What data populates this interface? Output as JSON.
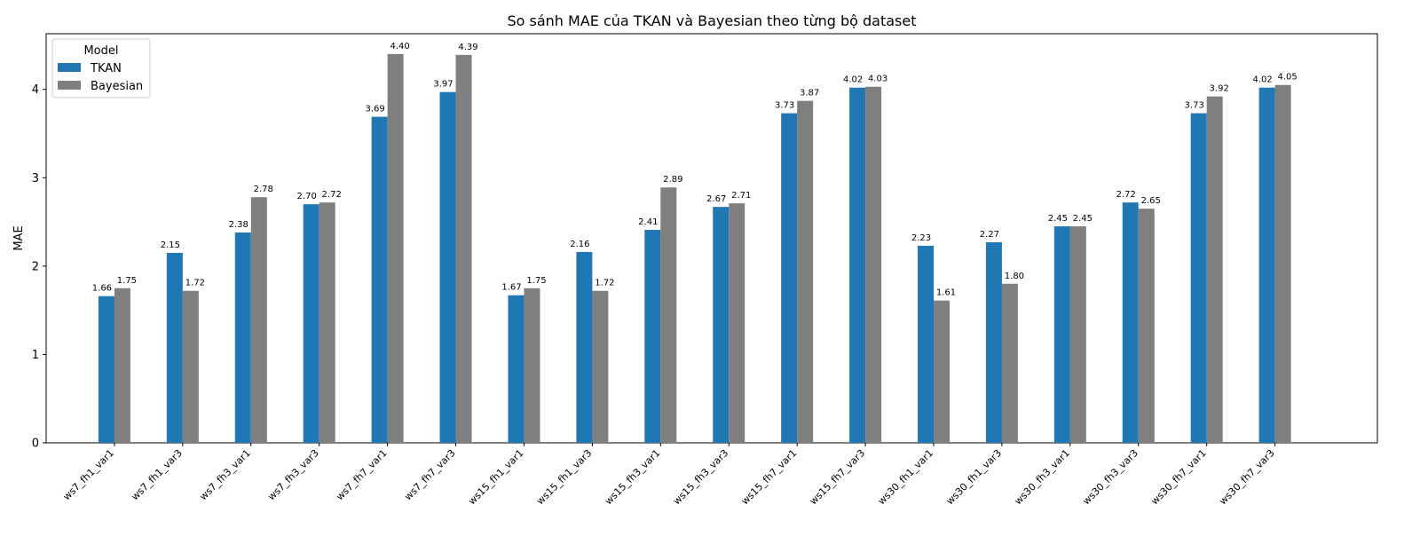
{
  "chart_data": {
    "type": "bar",
    "title": "So sánh MAE của TKAN và Bayesian theo từng bộ dataset",
    "xlabel": "",
    "ylabel": "MAE",
    "ylim": [
      0,
      4.63
    ],
    "yticks": [
      0,
      1,
      2,
      3,
      4
    ],
    "grid": false,
    "legend": {
      "title": "Model",
      "position": "top-left"
    },
    "categories": [
      "ws7_fh1_var1",
      "ws7_fh1_var3",
      "ws7_fh3_var1",
      "ws7_fh3_var3",
      "ws7_fh7_var1",
      "ws7_fh7_var3",
      "ws15_fh1_var1",
      "ws15_fh1_var3",
      "ws15_fh3_var1",
      "ws15_fh3_var3",
      "ws15_fh7_var1",
      "ws15_fh7_var3",
      "ws30_fh1_var1",
      "ws30_fh1_var3",
      "ws30_fh3_var1",
      "ws30_fh3_var3",
      "ws30_fh7_var1",
      "ws30_fh7_var3"
    ],
    "series": [
      {
        "name": "TKAN",
        "color": "#1f77b4",
        "values": [
          1.66,
          2.15,
          2.38,
          2.7,
          3.69,
          3.97,
          1.67,
          2.16,
          2.41,
          2.67,
          3.73,
          4.02,
          2.23,
          2.27,
          2.45,
          2.72,
          3.73,
          4.02
        ]
      },
      {
        "name": "Bayesian",
        "color": "#7f7f7f",
        "values": [
          1.75,
          1.72,
          2.78,
          2.72,
          4.4,
          4.39,
          1.75,
          1.72,
          2.89,
          2.71,
          3.87,
          4.03,
          1.61,
          1.8,
          2.45,
          2.65,
          3.92,
          4.05
        ]
      }
    ]
  }
}
